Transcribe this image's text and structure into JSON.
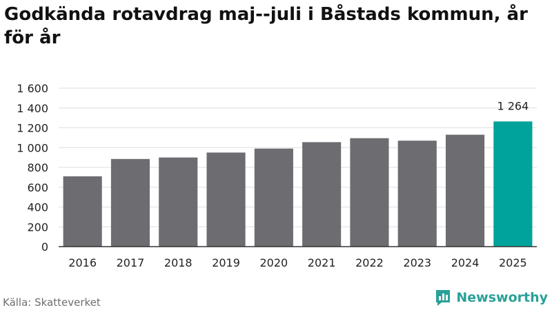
{
  "title": "Godkända rotavdrag maj--juli i Båstads kommun, år för år",
  "source": "Källa: Skatteverket",
  "brand": {
    "name": "Newsworthy",
    "icon": "newsworthy-logo-icon"
  },
  "colors": {
    "bar": "#6d6c71",
    "highlight": "#00a39b",
    "grid": "#dedede",
    "axis": "#333333",
    "text": "#222222"
  },
  "chart_data": {
    "type": "bar",
    "title": "Godkända rotavdrag maj--juli i Båstads kommun, år för år",
    "categories": [
      "2016",
      "2017",
      "2018",
      "2019",
      "2020",
      "2021",
      "2022",
      "2023",
      "2024",
      "2025"
    ],
    "values": [
      710,
      885,
      900,
      950,
      990,
      1055,
      1095,
      1070,
      1130,
      1264
    ],
    "highlight_index": 9,
    "data_labels": [
      {
        "index": 9,
        "text": "1 264"
      }
    ],
    "ylim": [
      0,
      1600
    ],
    "yticks": [
      0,
      200,
      400,
      600,
      800,
      1000,
      1200,
      1400,
      1600
    ],
    "ytick_labels": [
      "0",
      "200",
      "400",
      "600",
      "800",
      "1 000",
      "1 200",
      "1 400",
      "1 600"
    ],
    "grid": true,
    "xlabel": "",
    "ylabel": ""
  }
}
